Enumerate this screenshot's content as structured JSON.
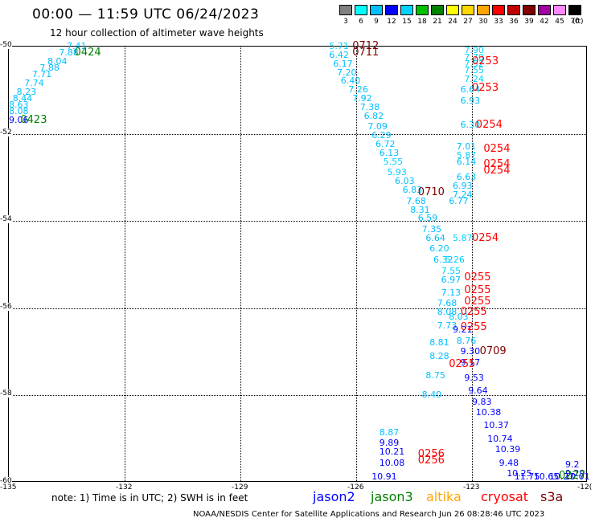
{
  "title": "00:00 — 11:59 UTC 06/24/2023",
  "subtitle": "12 hour collection of altimeter wave heights",
  "scale": {
    "ticks": [
      "3",
      "6",
      "9",
      "12",
      "15",
      "18",
      "21",
      "24",
      "27",
      "30",
      "33",
      "36",
      "39",
      "42",
      "45",
      "70"
    ],
    "colors": [
      "#808080",
      "#00ffff",
      "#00bfff",
      "#0000ff",
      "#00d2ff",
      "#00c000",
      "#008000",
      "#ffff00",
      "#ffd700",
      "#ffa500",
      "#ff0000",
      "#c00000",
      "#800000",
      "#a000a0",
      "#ff88ff",
      "#000000"
    ],
    "unit": "(ft)"
  },
  "map": {
    "lat_labels": [
      "-50",
      "-52",
      "-54",
      "-56",
      "-58",
      "-60"
    ],
    "lon_labels": [
      "-135",
      "-132",
      "-129",
      "-126",
      "-123",
      "-12("
    ]
  },
  "observations": [
    {
      "text": "7.41",
      "color": "#00bfff",
      "lon": -133.5,
      "lat": -50.0
    },
    {
      "text": "7.88",
      "color": "#00bfff",
      "lon": -133.7,
      "lat": -50.15
    },
    {
      "text": "8.04",
      "color": "#00bfff",
      "lon": -134.0,
      "lat": -50.35
    },
    {
      "text": "7.88",
      "color": "#00bfff",
      "lon": -134.2,
      "lat": -50.5
    },
    {
      "text": "7.71",
      "color": "#00bfff",
      "lon": -134.4,
      "lat": -50.65
    },
    {
      "text": "7.74",
      "color": "#00bfff",
      "lon": -134.6,
      "lat": -50.85
    },
    {
      "text": "8.23",
      "color": "#00bfff",
      "lon": -134.8,
      "lat": -51.05
    },
    {
      "text": "8.44",
      "color": "#00bfff",
      "lon": -134.9,
      "lat": -51.2
    },
    {
      "text": "8.63",
      "color": "#00bfff",
      "lon": -135.1,
      "lat": -51.35
    },
    {
      "text": "8.08",
      "color": "#00bfff",
      "lon": -135.2,
      "lat": -51.5
    },
    {
      "text": "9.06",
      "color": "#0000ff",
      "lon": -135.4,
      "lat": -51.7
    },
    {
      "text": "5.71",
      "color": "#00d2ff",
      "lon": -126.7,
      "lat": -50.0
    },
    {
      "text": "6.42",
      "color": "#00bfff",
      "lon": -126.7,
      "lat": -50.2
    },
    {
      "text": "6.17",
      "color": "#00bfff",
      "lon": -126.6,
      "lat": -50.4
    },
    {
      "text": "7.20",
      "color": "#00bfff",
      "lon": -126.5,
      "lat": -50.6
    },
    {
      "text": "6.40",
      "color": "#00bfff",
      "lon": -126.4,
      "lat": -50.8
    },
    {
      "text": "7.26",
      "color": "#00bfff",
      "lon": -126.2,
      "lat": -51.0
    },
    {
      "text": "7.92",
      "color": "#00bfff",
      "lon": -126.1,
      "lat": -51.2
    },
    {
      "text": "7.38",
      "color": "#00bfff",
      "lon": -125.9,
      "lat": -51.4
    },
    {
      "text": "6.82",
      "color": "#00bfff",
      "lon": -125.8,
      "lat": -51.6
    },
    {
      "text": "7.09",
      "color": "#00bfff",
      "lon": -125.7,
      "lat": -51.85
    },
    {
      "text": "6.29",
      "color": "#00bfff",
      "lon": -125.6,
      "lat": -52.05
    },
    {
      "text": "6.72",
      "color": "#00bfff",
      "lon": -125.5,
      "lat": -52.25
    },
    {
      "text": "6.13",
      "color": "#00bfff",
      "lon": -125.4,
      "lat": -52.45
    },
    {
      "text": "5.55",
      "color": "#00d2ff",
      "lon": -125.3,
      "lat": -52.65
    },
    {
      "text": "5.93",
      "color": "#00d2ff",
      "lon": -125.2,
      "lat": -52.9
    },
    {
      "text": "6.03",
      "color": "#00bfff",
      "lon": -125.0,
      "lat": -53.1
    },
    {
      "text": "6.83",
      "color": "#00bfff",
      "lon": -124.8,
      "lat": -53.3
    },
    {
      "text": "7.68",
      "color": "#00bfff",
      "lon": -124.7,
      "lat": -53.55
    },
    {
      "text": "8.31",
      "color": "#00bfff",
      "lon": -124.6,
      "lat": -53.75
    },
    {
      "text": "6.59",
      "color": "#00bfff",
      "lon": -124.4,
      "lat": -53.95
    },
    {
      "text": "7.35",
      "color": "#00bfff",
      "lon": -124.3,
      "lat": -54.2
    },
    {
      "text": "6.64",
      "color": "#00bfff",
      "lon": -124.2,
      "lat": -54.4
    },
    {
      "text": "6.20",
      "color": "#00bfff",
      "lon": -124.1,
      "lat": -54.65
    },
    {
      "text": "6.32",
      "color": "#00bfff",
      "lon": -124.0,
      "lat": -54.9
    },
    {
      "text": "5.87",
      "color": "#00d2ff",
      "lon": -123.5,
      "lat": -54.4
    },
    {
      "text": "7.90",
      "color": "#00d2ff",
      "lon": -123.2,
      "lat": -50.1
    },
    {
      "text": "7.70",
      "color": "#00d2ff",
      "lon": -123.2,
      "lat": -50.25
    },
    {
      "text": "7.52",
      "color": "#00d2ff",
      "lon": -123.2,
      "lat": -50.4
    },
    {
      "text": "7.55",
      "color": "#00d2ff",
      "lon": -123.2,
      "lat": -50.55
    },
    {
      "text": "7.24",
      "color": "#00d2ff",
      "lon": -123.2,
      "lat": -50.75
    },
    {
      "text": "6.64",
      "color": "#00bfff",
      "lon": -123.3,
      "lat": -51.0
    },
    {
      "text": "6.93",
      "color": "#00bfff",
      "lon": -123.3,
      "lat": -51.25
    },
    {
      "text": "6.30",
      "color": "#00bfff",
      "lon": -123.3,
      "lat": -51.8
    },
    {
      "text": "7.01",
      "color": "#00bfff",
      "lon": -123.4,
      "lat": -52.3
    },
    {
      "text": "5.87",
      "color": "#00d2ff",
      "lon": -123.4,
      "lat": -52.5
    },
    {
      "text": "6.14",
      "color": "#00bfff",
      "lon": -123.4,
      "lat": -52.65
    },
    {
      "text": "6.63",
      "color": "#00bfff",
      "lon": -123.4,
      "lat": -53.0
    },
    {
      "text": "6.93",
      "color": "#00bfff",
      "lon": -123.5,
      "lat": -53.2
    },
    {
      "text": "7.24",
      "color": "#00bfff",
      "lon": -123.5,
      "lat": -53.4
    },
    {
      "text": "6.77",
      "color": "#00bfff",
      "lon": -123.6,
      "lat": -53.55
    },
    {
      "text": "5.26",
      "color": "#00d2ff",
      "lon": -123.7,
      "lat": -54.9
    },
    {
      "text": "7.55",
      "color": "#00d2ff",
      "lon": -123.8,
      "lat": -55.15
    },
    {
      "text": "6.97",
      "color": "#00bfff",
      "lon": -123.8,
      "lat": -55.35
    },
    {
      "text": "7.13",
      "color": "#00bfff",
      "lon": -123.8,
      "lat": -55.65
    },
    {
      "text": "7.68",
      "color": "#00bfff",
      "lon": -123.9,
      "lat": -55.9
    },
    {
      "text": "8.08",
      "color": "#00bfff",
      "lon": -123.9,
      "lat": -56.1
    },
    {
      "text": "8.03",
      "color": "#00bfff",
      "lon": -123.6,
      "lat": -56.2
    },
    {
      "text": "7.73",
      "color": "#00bfff",
      "lon": -123.9,
      "lat": -56.4
    },
    {
      "text": "9.21",
      "color": "#0000ff",
      "lon": -123.5,
      "lat": -56.5
    },
    {
      "text": "8.76",
      "color": "#00bfff",
      "lon": -123.4,
      "lat": -56.75
    },
    {
      "text": "8.81",
      "color": "#00bfff",
      "lon": -124.1,
      "lat": -56.8
    },
    {
      "text": "8.28",
      "color": "#00bfff",
      "lon": -124.1,
      "lat": -57.1
    },
    {
      "text": "9.30",
      "color": "#0000ff",
      "lon": -123.3,
      "lat": -57.0
    },
    {
      "text": "9.17",
      "color": "#0000ff",
      "lon": -123.3,
      "lat": -57.25
    },
    {
      "text": "8.75",
      "color": "#00bfff",
      "lon": -124.2,
      "lat": -57.55
    },
    {
      "text": "9.53",
      "color": "#0000ff",
      "lon": -123.2,
      "lat": -57.6
    },
    {
      "text": "9.64",
      "color": "#0000ff",
      "lon": -123.1,
      "lat": -57.9
    },
    {
      "text": "8.40",
      "color": "#00bfff",
      "lon": -124.3,
      "lat": -58.0
    },
    {
      "text": "9.83",
      "color": "#0000ff",
      "lon": -123.0,
      "lat": -58.15
    },
    {
      "text": "10.38",
      "color": "#0000ff",
      "lon": -122.9,
      "lat": -58.4
    },
    {
      "text": "10.37",
      "color": "#0000ff",
      "lon": -122.7,
      "lat": -58.7
    },
    {
      "text": "10.74",
      "color": "#0000ff",
      "lon": -122.6,
      "lat": -59.0
    },
    {
      "text": "10.39",
      "color": "#0000ff",
      "lon": -122.4,
      "lat": -59.25
    },
    {
      "text": "9.48",
      "color": "#0000ff",
      "lon": -122.3,
      "lat": -59.55
    },
    {
      "text": "10.25",
      "color": "#0000ff",
      "lon": -122.1,
      "lat": -59.8
    },
    {
      "text": "11.75",
      "color": "#0000ff",
      "lon": -121.9,
      "lat": -60.05
    },
    {
      "text": "8.87",
      "color": "#00bfff",
      "lon": -125.4,
      "lat": -58.85
    },
    {
      "text": "9.89",
      "color": "#0000ff",
      "lon": -125.4,
      "lat": -59.1
    },
    {
      "text": "10.21",
      "color": "#0000ff",
      "lon": -125.4,
      "lat": -59.3
    },
    {
      "text": "10.08",
      "color": "#0000ff",
      "lon": -125.4,
      "lat": -59.55
    },
    {
      "text": "10.91",
      "color": "#0000ff",
      "lon": -125.6,
      "lat": -60.0
    },
    {
      "text": "10.65",
      "color": "#0000ff",
      "lon": -121.4,
      "lat": -60.25
    },
    {
      "text": "10.27",
      "color": "#0000ff",
      "lon": -121.0,
      "lat": -60.15
    },
    {
      "text": "10.01",
      "color": "#0000ff",
      "lon": -120.6,
      "lat": -60.0
    },
    {
      "text": "9.29",
      "color": "#0000ff",
      "lon": -120.3,
      "lat": -59.8
    },
    {
      "text": "9.2",
      "color": "#0000ff",
      "lon": -120.0,
      "lat": -59.6
    }
  ],
  "passes": [
    {
      "text": "0424",
      "color": "#008000",
      "lon": -133.3,
      "lat": -50.15
    },
    {
      "text": "0423",
      "color": "#008000",
      "lon": -134.7,
      "lat": -51.7
    },
    {
      "text": "0712",
      "color": "#800000",
      "lon": -126.1,
      "lat": -49.95
    },
    {
      "text": "0711",
      "color": "#800000",
      "lon": -126.1,
      "lat": -50.15
    },
    {
      "text": "0253",
      "color": "#ff0000",
      "lon": -123.0,
      "lat": -50.35
    },
    {
      "text": "0253",
      "color": "#ff0000",
      "lon": -123.0,
      "lat": -50.95
    },
    {
      "text": "0254",
      "color": "#ff0000",
      "lon": -122.9,
      "lat": -51.8
    },
    {
      "text": "0254",
      "color": "#ff0000",
      "lon": -122.7,
      "lat": -52.35
    },
    {
      "text": "0254",
      "color": "#ff0000",
      "lon": -122.7,
      "lat": -52.7
    },
    {
      "text": "0254",
      "color": "#ff0000",
      "lon": -122.7,
      "lat": -52.85
    },
    {
      "text": "0710",
      "color": "#800000",
      "lon": -124.4,
      "lat": -53.35
    },
    {
      "text": "0254",
      "color": "#ff0000",
      "lon": -123.0,
      "lat": -54.4
    },
    {
      "text": "0255",
      "color": "#ff0000",
      "lon": -123.2,
      "lat": -55.3
    },
    {
      "text": "0255",
      "color": "#ff0000",
      "lon": -123.2,
      "lat": -55.6
    },
    {
      "text": "0255",
      "color": "#ff0000",
      "lon": -123.2,
      "lat": -55.85
    },
    {
      "text": "0255",
      "color": "#ff0000",
      "lon": -123.3,
      "lat": -56.1
    },
    {
      "text": "0255",
      "color": "#ff0000",
      "lon": -123.3,
      "lat": -56.45
    },
    {
      "text": "0709",
      "color": "#800000",
      "lon": -122.8,
      "lat": -57.0
    },
    {
      "text": "0255",
      "color": "#ff0000",
      "lon": -123.6,
      "lat": -57.3
    },
    {
      "text": "0256",
      "color": "#ff0000",
      "lon": -124.4,
      "lat": -59.35
    },
    {
      "text": "0256",
      "color": "#ff0000",
      "lon": -124.4,
      "lat": -59.5
    },
    {
      "text": "0227",
      "color": "#008000",
      "lon": -120.6,
      "lat": -60.25
    }
  ],
  "note": "note:  1) Time is in UTC;  2) SWH is in feet",
  "legend": [
    {
      "name": "jason2",
      "color": "#0000ff"
    },
    {
      "name": "jason3",
      "color": "#008000"
    },
    {
      "name": "altika",
      "color": "#ffa500"
    },
    {
      "name": "cryosat",
      "color": "#ff0000"
    },
    {
      "name": "s3a",
      "color": "#800000"
    }
  ],
  "credit": "NOAA/NESDIS Center for Satellite Applications and Research    Jun 26 08:28:46 UTC 2023"
}
